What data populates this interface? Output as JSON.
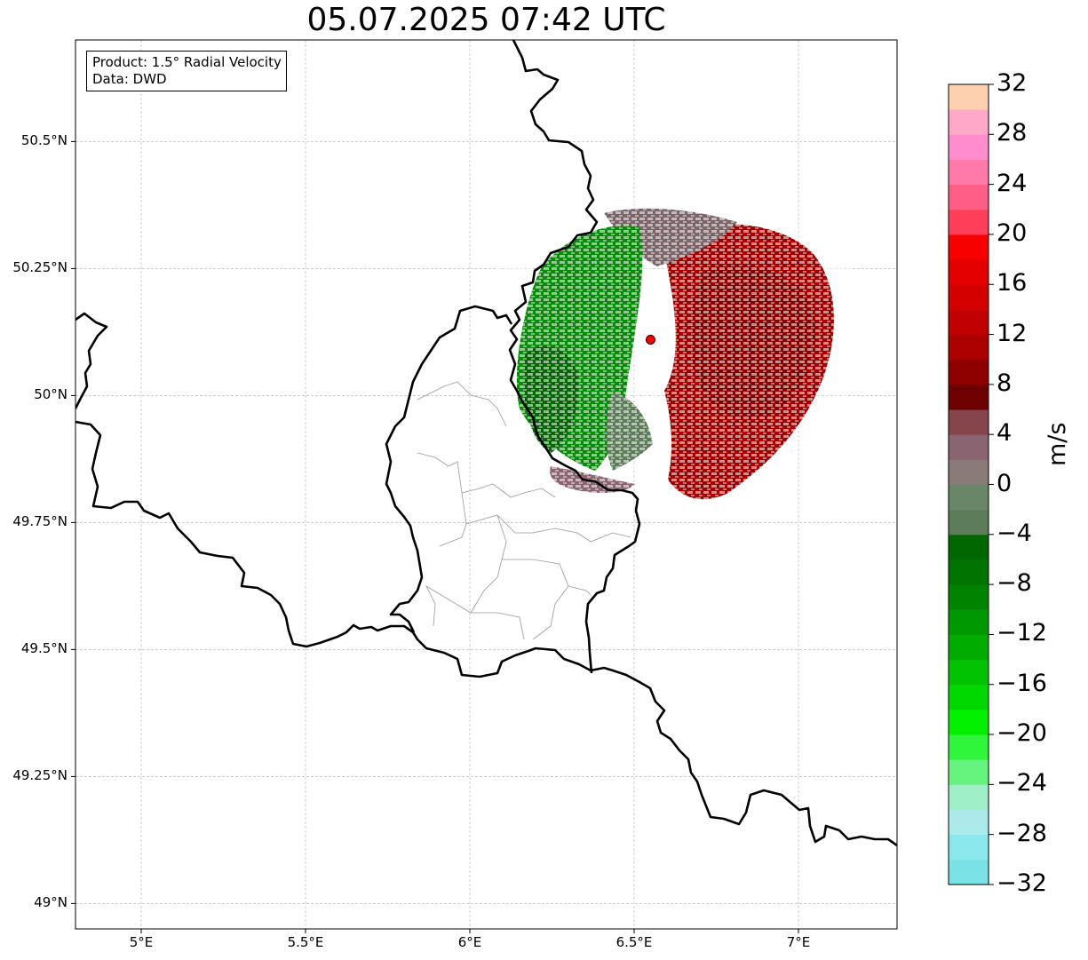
{
  "title": "05.07.2025 07:42 UTC",
  "info": {
    "product": "Product: 1.5° Radial Velocity",
    "data": "Data: DWD"
  },
  "axes": {
    "x_ticks": [
      "5°E",
      "5.5°E",
      "6°E",
      "6.5°E",
      "7°E"
    ],
    "y_ticks": [
      "50.5°N",
      "50.25°N",
      "50°N",
      "49.75°N",
      "49.5°N",
      "49.25°N",
      "49°N"
    ],
    "x_range": [
      4.8,
      7.3
    ],
    "y_range": [
      48.95,
      50.7
    ],
    "grid": true
  },
  "colorbar": {
    "label": "m/s",
    "ticks": [
      "32",
      "28",
      "24",
      "20",
      "16",
      "12",
      "8",
      "4",
      "0",
      "−4",
      "−8",
      "−12",
      "−16",
      "−20",
      "−24",
      "−28",
      "−32"
    ],
    "min": -32,
    "max": 32,
    "colors_low_to_high": [
      "#7be2e8",
      "#8ae8ec",
      "#aaeaea",
      "#9ff0c8",
      "#66f47e",
      "#2ff63a",
      "#00f000",
      "#00d800",
      "#00c200",
      "#00ac00",
      "#009800",
      "#008400",
      "#007400",
      "#006600",
      "#5c7c5a",
      "#6a8668",
      "#8a7a78",
      "#8a6470",
      "#86454c",
      "#6e0000",
      "#8e0000",
      "#aa0000",
      "#c00000",
      "#d40000",
      "#e40000",
      "#f80000",
      "#ff3e5a",
      "#ff5e86",
      "#ff7aa8",
      "#ff8ccc",
      "#ffa8c8",
      "#ffd0b0"
    ]
  },
  "radar": {
    "site": {
      "lon": 6.55,
      "lat": 50.11,
      "color": "#ff0000"
    }
  }
}
